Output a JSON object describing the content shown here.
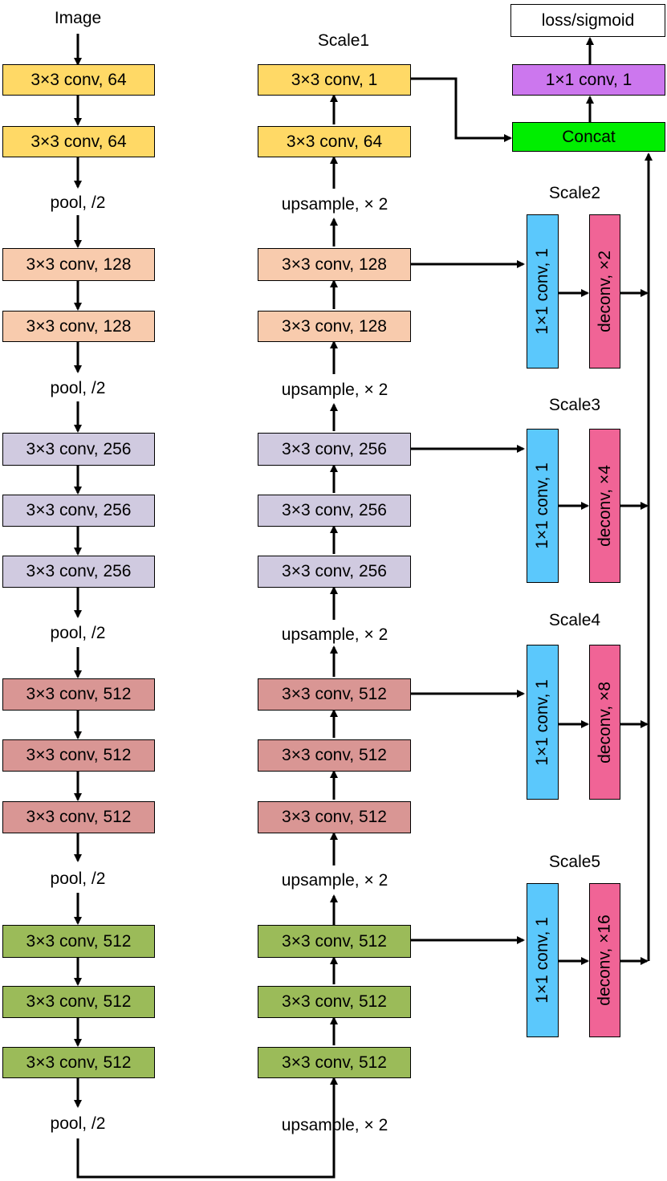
{
  "colors": {
    "yellow": "#FFD966",
    "peach": "#F8CBAD",
    "lavender": "#D0CAE0",
    "rose": "#D99694",
    "green": "#9BBB59",
    "purple": "#CC77EE",
    "concat": "#00EE00",
    "blue": "#5BC8FC",
    "pink": "#F06496",
    "white": "#FFFFFF"
  },
  "labels": {
    "image": "Image",
    "scale1": "Scale1",
    "scale2": "Scale2",
    "scale3": "Scale3",
    "scale4": "Scale4",
    "scale5": "Scale5",
    "pool": "pool, /2",
    "upsample": "upsample, × 2"
  },
  "encoder": {
    "conv1_1": "3×3 conv, 64",
    "conv1_2": "3×3 conv, 64",
    "conv2_1": "3×3 conv, 128",
    "conv2_2": "3×3 conv, 128",
    "conv3_1": "3×3 conv, 256",
    "conv3_2": "3×3 conv, 256",
    "conv3_3": "3×3 conv, 256",
    "conv4_1": "3×3 conv, 512",
    "conv4_2": "3×3 conv, 512",
    "conv4_3": "3×3 conv, 512",
    "conv5_1": "3×3 conv, 512",
    "conv5_2": "3×3 conv, 512",
    "conv5_3": "3×3 conv, 512"
  },
  "decoder": {
    "d1_out": "3×3 conv, 1",
    "d1_conv": "3×3 conv, 64",
    "d2_out": "3×3 conv, 128",
    "d2_conv": "3×3 conv, 128",
    "d3_out": "3×3 conv, 256",
    "d3_conv2": "3×3 conv, 256",
    "d3_conv1": "3×3 conv, 256",
    "d4_out": "3×3 conv, 512",
    "d4_conv2": "3×3 conv, 512",
    "d4_conv1": "3×3 conv, 512",
    "d5_out": "3×3 conv, 512",
    "d5_conv2": "3×3 conv, 512",
    "d5_conv1": "3×3 conv, 512"
  },
  "fusion": {
    "loss": "loss/sigmoid",
    "conv1x1": "1×1 conv, 1",
    "concat": "Concat"
  },
  "side": {
    "conv": "1×1 conv, 1",
    "deconv2": "deconv, ×2",
    "deconv4": "deconv, ×4",
    "deconv8": "deconv, ×8",
    "deconv16": "deconv, ×16"
  }
}
